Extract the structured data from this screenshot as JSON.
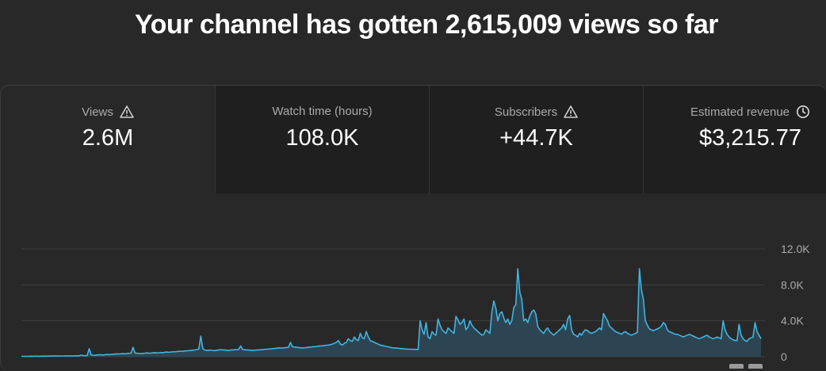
{
  "headline": "Your channel has gotten 2,615,009 views so far",
  "tabs": [
    {
      "label": "Views",
      "value": "2.6M",
      "icon": "warning-icon",
      "active": true
    },
    {
      "label": "Watch time (hours)",
      "value": "108.0K",
      "icon": "",
      "active": false
    },
    {
      "label": "Subscribers",
      "value": "+44.7K",
      "icon": "warning-icon",
      "active": false
    },
    {
      "label": "Estimated revenue",
      "value": "$3,215.77",
      "icon": "clock-icon",
      "active": false
    }
  ],
  "colors": {
    "line": "#41b4e0",
    "fill": "#2e4a5a",
    "grid": "#3e3e3e",
    "bg": "#282828"
  },
  "chart_data": {
    "type": "area",
    "series": [
      {
        "metric": "Views",
        "values": [
          40,
          45,
          50,
          48,
          55,
          60,
          52,
          58,
          62,
          55,
          60,
          70,
          65,
          72,
          68,
          80,
          75,
          82,
          78,
          85,
          90,
          85,
          88,
          95,
          92,
          100,
          98,
          105,
          102,
          110,
          180,
          120,
          115,
          130,
          900,
          200,
          180,
          160,
          200,
          220,
          210,
          190,
          230,
          250,
          240,
          260,
          280,
          300,
          320,
          310,
          330,
          340,
          320,
          360,
          380,
          400,
          1050,
          420,
          380,
          360,
          340,
          380,
          400,
          420,
          390,
          410,
          430,
          450,
          420,
          440,
          470,
          460,
          500,
          520,
          490,
          530,
          550,
          560,
          580,
          600,
          620,
          600,
          640,
          660,
          680,
          700,
          720,
          750,
          800,
          850,
          2300,
          900,
          750,
          700,
          720,
          740,
          700,
          680,
          720,
          760,
          780,
          760,
          740,
          720,
          700,
          740,
          760,
          780,
          800,
          820,
          1200,
          800,
          780,
          760,
          740,
          720,
          700,
          720,
          740,
          760,
          780,
          800,
          820,
          840,
          860,
          880,
          900,
          920,
          940,
          1000,
          960,
          980,
          1000,
          1020,
          1050,
          1600,
          1100,
          1080,
          1050,
          1020,
          1000,
          980,
          1000,
          1020,
          1050,
          1080,
          1100,
          1120,
          1150,
          1180,
          1200,
          1220,
          1250,
          1280,
          1300,
          1350,
          1400,
          1500,
          1600,
          1800,
          1400,
          1300,
          1500,
          1600,
          2000,
          1800,
          1700,
          2200,
          1900,
          1800,
          2600,
          2100,
          2000,
          2800,
          2200,
          1800,
          1700,
          1600,
          1500,
          1400,
          1300,
          1250,
          1200,
          1150,
          1100,
          1050,
          1000,
          980,
          960,
          940,
          920,
          900,
          880,
          860,
          850,
          840,
          830,
          820,
          810,
          800,
          4000,
          3000,
          2500,
          3800,
          2200,
          2000,
          2800,
          2500,
          2400,
          4200,
          3500,
          3000,
          2800,
          2600,
          3200,
          3000,
          2800,
          2600,
          4500,
          4100,
          3600,
          3800,
          4200,
          3000,
          3300,
          4000,
          3500,
          3200,
          3000,
          2800,
          2600,
          2400,
          2500,
          3000,
          2800,
          2600,
          5000,
          6200,
          5400,
          4000,
          4800,
          5000,
          4300,
          3800,
          4200,
          3600,
          4000,
          5500,
          5800,
          9800,
          7200,
          6400,
          4000,
          4200,
          3800,
          4500,
          5000,
          5200,
          4800,
          3400,
          3000,
          2800,
          2600,
          3000,
          3200,
          2800,
          2600,
          2400,
          2600,
          2800,
          3000,
          3200,
          3600,
          3000,
          4200,
          4600,
          3000,
          2500,
          2400,
          2200,
          2600,
          2400,
          2800,
          3000,
          2900,
          2700,
          2600,
          2700,
          2800,
          3000,
          3200,
          3000,
          4800,
          4400,
          4000,
          3400,
          3200,
          3000,
          2800,
          2700,
          2600,
          2500,
          2700,
          2800,
          2600,
          2500,
          2400,
          2500,
          2600,
          2700,
          9800,
          7500,
          6400,
          4000,
          3500,
          3100,
          3000,
          2900,
          3000,
          3100,
          3200,
          3400,
          3800,
          3600,
          3000,
          2800,
          2700,
          2600,
          2500,
          2500,
          2400,
          2300,
          2200,
          2300,
          2400,
          2500,
          2400,
          2300,
          2200,
          2100,
          2000,
          2100,
          2200,
          2300,
          2400,
          2200,
          2100,
          2000,
          2100,
          2200,
          2100,
          2000,
          4000,
          3000,
          2500,
          2200,
          2000,
          1900,
          1800,
          1800,
          3600,
          2400,
          2000,
          1800,
          1700,
          2000,
          2100,
          2200,
          3800,
          2800,
          2400,
          2000
        ]
      }
    ],
    "y_ticks": [
      "0",
      "4.0K",
      "8.0K",
      "12.0K"
    ],
    "y_range": [
      0,
      12000
    ],
    "grid": true
  }
}
